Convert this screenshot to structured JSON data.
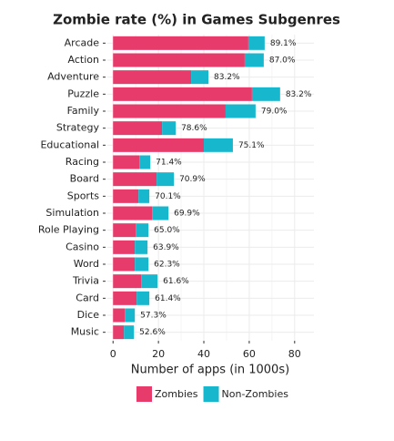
{
  "chart_data": {
    "type": "stacked-bar-horizontal",
    "title": "Zombie rate (%) in Games Subgenres",
    "xlabel": "Number of apps (in 1000s)",
    "categories": [
      "Arcade",
      "Action",
      "Adventure",
      "Puzzle",
      "Family",
      "Strategy",
      "Educational",
      "Racing",
      "Board",
      "Sports",
      "Simulation",
      "Role Playing",
      "Casino",
      "Word",
      "Trivia",
      "Card",
      "Dice",
      "Music"
    ],
    "series": [
      {
        "name": "Zombies",
        "color": "#e63b6b",
        "values": [
          59.6,
          58,
          34.4,
          61.2,
          49.6,
          21.6,
          40,
          11.6,
          19.2,
          11.2,
          17.2,
          10,
          9.6,
          9.6,
          12.4,
          10.4,
          5.2,
          4.8
        ]
      },
      {
        "name": "Non-Zombies",
        "color": "#17b8ce",
        "values": [
          7.2,
          8.4,
          7.6,
          12.4,
          13.2,
          6,
          12.8,
          4.8,
          7.6,
          4.8,
          7.2,
          5.6,
          5.6,
          6,
          7.2,
          5.6,
          4.4,
          4.4
        ]
      }
    ],
    "zombie_rate": {
      "values": [
        89.1,
        87.0,
        83.2,
        83.2,
        79.0,
        78.6,
        75.1,
        71.4,
        70.9,
        70.1,
        69.9,
        65.0,
        63.9,
        62.3,
        61.6,
        61.4,
        57.3,
        52.6
      ],
      "value_labels": [
        "89.1%",
        "87.0%",
        "83.2%",
        "83.2%",
        "79.0%",
        "78.6%",
        "75.1%",
        "71.4%",
        "70.9%",
        "70.1%",
        "69.9%",
        "65.0%",
        "63.9%",
        "62.3%",
        "61.6%",
        "61.4%",
        "57.3%",
        "52.6%"
      ]
    },
    "xlim": [
      -2.5,
      88.5
    ],
    "xticks": [
      0,
      20,
      40,
      60,
      80
    ],
    "grid": true,
    "legend": "bottom"
  }
}
